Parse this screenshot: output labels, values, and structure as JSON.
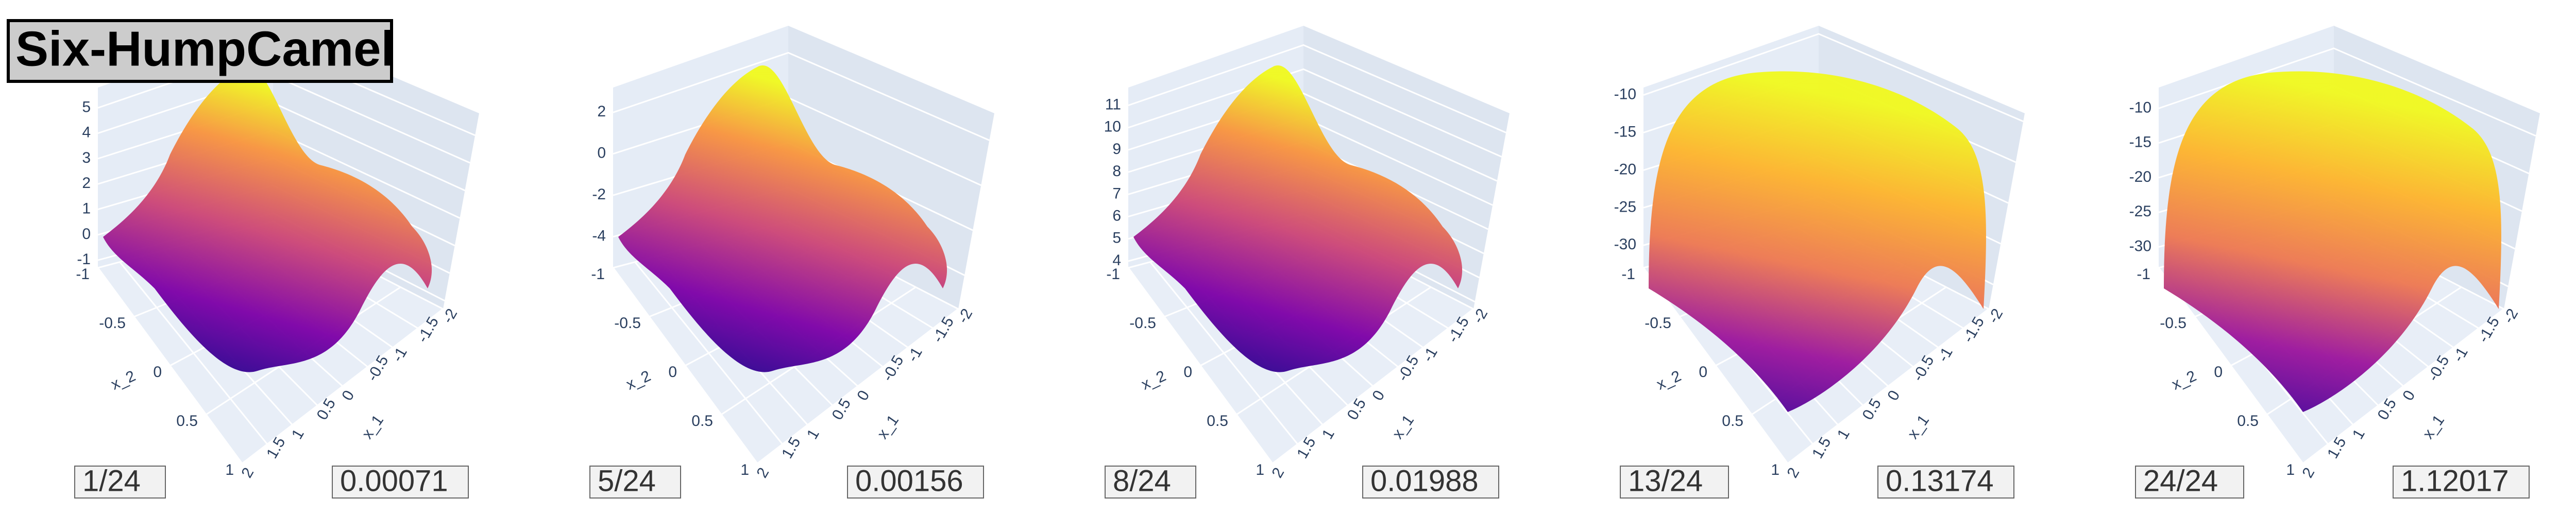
{
  "title": "Six-HumpCamel",
  "chart_data": [
    {
      "type": "surface",
      "step_label": "1/24",
      "value_label": "0.00071",
      "xlabel": "x_1",
      "ylabel": "x_2",
      "zlim": [
        -1.3,
        5.8
      ],
      "zticks": [
        -1,
        0,
        1,
        2,
        3,
        4,
        5
      ],
      "xlim": [
        -2,
        2
      ],
      "xticks": [
        -2,
        -1.5,
        -1,
        -0.5,
        0,
        0.5,
        1,
        1.5,
        2
      ],
      "ylim": [
        -1,
        1
      ],
      "yticks": [
        -1,
        -0.5,
        0,
        0.5,
        1
      ]
    },
    {
      "type": "surface",
      "step_label": "5/24",
      "value_label": "0.00156",
      "xlabel": "x_1",
      "ylabel": "x_2",
      "zlim": [
        -5.5,
        3.2
      ],
      "zticks": [
        -4,
        -2,
        0,
        2
      ],
      "xlim": [
        -2,
        2
      ],
      "xticks": [
        -2,
        -1.5,
        -1,
        -0.5,
        0,
        0.5,
        1,
        1.5,
        2
      ],
      "ylim": [
        -1,
        1
      ],
      "yticks": [
        -1,
        -0.5,
        0,
        0.5,
        1
      ]
    },
    {
      "type": "surface",
      "step_label": "8/24",
      "value_label": "0.01988",
      "xlabel": "x_1",
      "ylabel": "x_2",
      "zlim": [
        3.7,
        11.8
      ],
      "zticks": [
        4,
        5,
        6,
        7,
        8,
        9,
        10,
        11
      ],
      "xlim": [
        -2,
        2
      ],
      "xticks": [
        -2,
        -1.5,
        -1,
        -0.5,
        0,
        0.5,
        1,
        1.5,
        2
      ],
      "ylim": [
        -1,
        1
      ],
      "yticks": [
        -1,
        -0.5,
        0,
        0.5,
        1
      ]
    },
    {
      "type": "surface",
      "step_label": "13/24",
      "value_label": "0.13174",
      "xlabel": "x_1",
      "ylabel": "x_2",
      "zlim": [
        -33,
        -9
      ],
      "zticks": [
        -30,
        -25,
        -20,
        -15,
        -10
      ],
      "xlim": [
        -2,
        2
      ],
      "xticks": [
        -2,
        -1.5,
        -1,
        -0.5,
        0,
        0.5,
        1,
        1.5,
        2
      ],
      "ylim": [
        -1,
        1
      ],
      "yticks": [
        -1,
        -0.5,
        0,
        0.5,
        1
      ]
    },
    {
      "type": "surface",
      "step_label": "24/24",
      "value_label": "1.12017",
      "xlabel": "x_1",
      "ylabel": "x_2",
      "zlim": [
        -33,
        -7
      ],
      "zticks": [
        -30,
        -25,
        -20,
        -15,
        -10
      ],
      "xlim": [
        -2,
        2
      ],
      "xticks": [
        -2,
        -1.5,
        -1,
        -0.5,
        0,
        0.5,
        1,
        1.5,
        2
      ],
      "ylim": [
        -1,
        1
      ],
      "yticks": [
        -1,
        -0.5,
        0,
        0.5,
        1
      ]
    }
  ]
}
